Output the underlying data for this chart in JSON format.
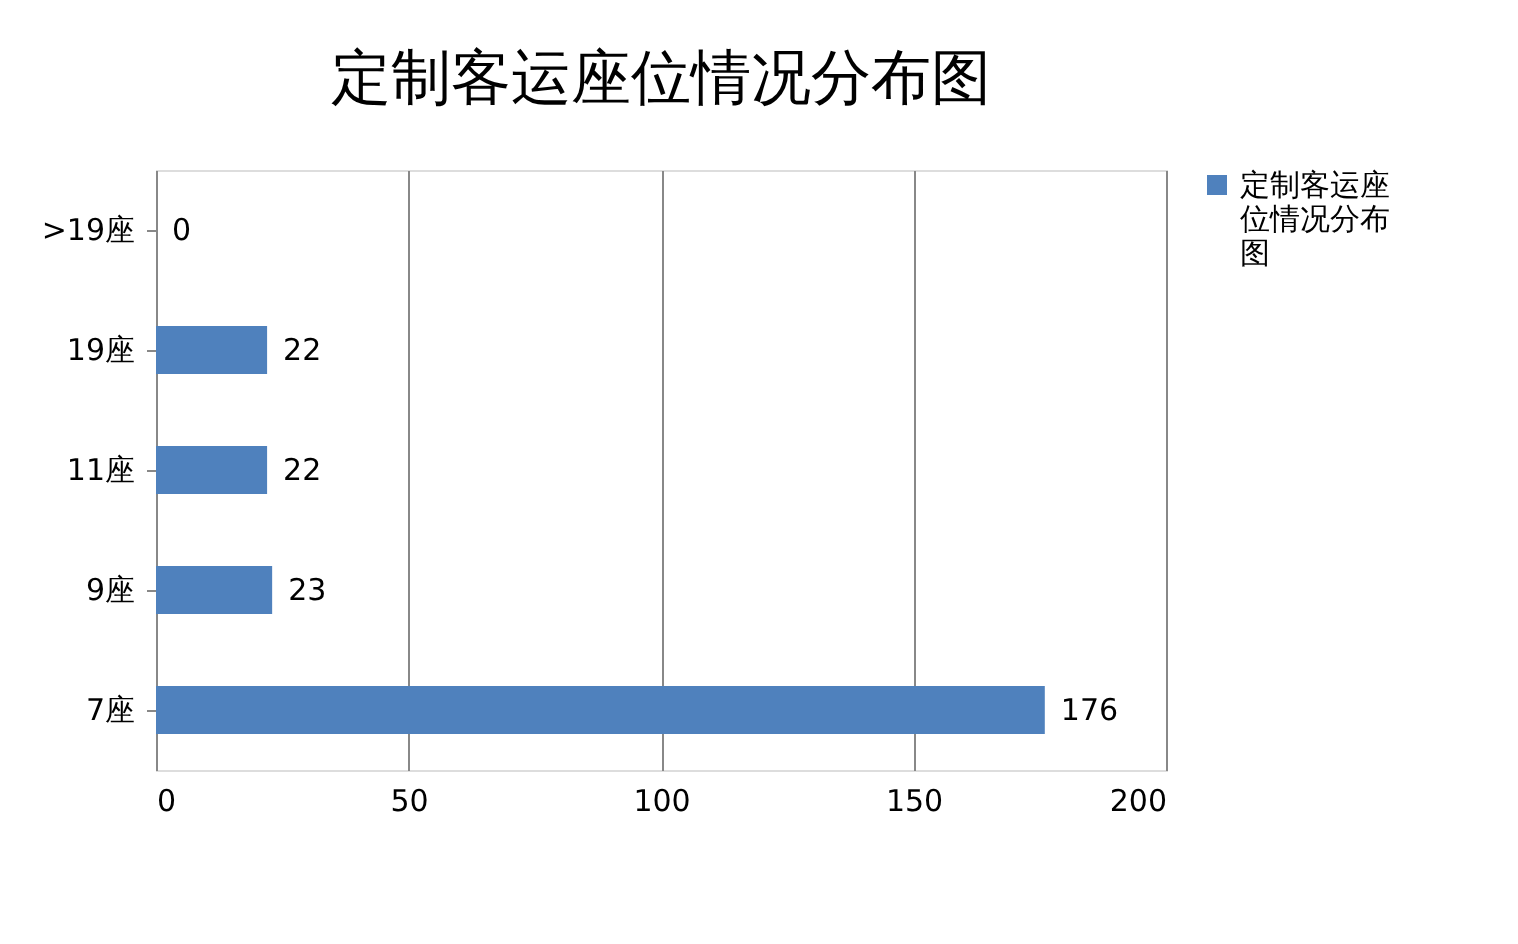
{
  "chart_data": {
    "type": "bar",
    "title": "定制客运座位情况分布图",
    "orientation": "horizontal",
    "categories": [
      ">19座",
      "19座",
      "11座",
      "9座",
      "7座"
    ],
    "series": [
      {
        "name": "定制客运座位情况分布图",
        "color": "#4f81bd",
        "values": [
          0,
          22,
          22,
          23,
          176
        ]
      }
    ],
    "xlim": [
      0,
      200
    ],
    "xticks": [
      0,
      50,
      100,
      150,
      200
    ],
    "grid": "x",
    "legend": "right",
    "data_labels": true
  }
}
